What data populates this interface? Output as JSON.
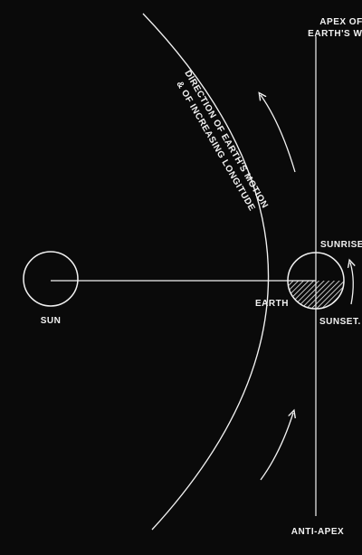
{
  "diagram": {
    "labels": {
      "apex_line1": "APEX OF",
      "apex_line2": "EARTH'S WAY",
      "motion_line1": "DIRECTION OF EARTH'S MOTION",
      "motion_line2": "& OF INCREASING LONGITUDE",
      "sunrise": "SUNRISE",
      "sunset": "SUNSET.",
      "earth": "EARTH",
      "sun": "SUN",
      "anti_apex": "ANTI-APEX"
    },
    "colors": {
      "background": "#0a0a0a",
      "ink": "#f2f2f2"
    }
  }
}
